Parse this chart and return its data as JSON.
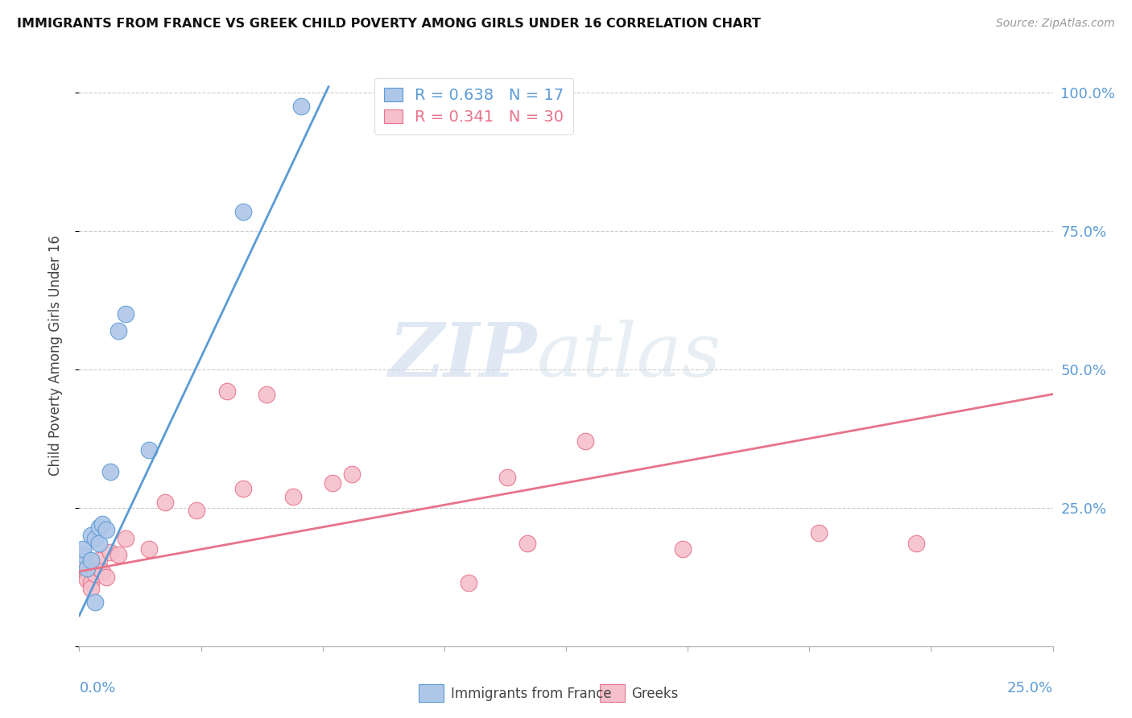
{
  "title": "IMMIGRANTS FROM FRANCE VS GREEK CHILD POVERTY AMONG GIRLS UNDER 16 CORRELATION CHART",
  "source": "Source: ZipAtlas.com",
  "ylabel": "Child Poverty Among Girls Under 16",
  "xlim": [
    0,
    0.25
  ],
  "ylim": [
    0,
    1.05
  ],
  "blue_R": 0.638,
  "blue_N": 17,
  "pink_R": 0.341,
  "pink_N": 30,
  "blue_color": "#aec6e8",
  "pink_color": "#f5c0cb",
  "blue_line_color": "#5b9bd5",
  "pink_line_color": "#e8738a",
  "label_color": "#5b9bd5",
  "blue_scatter_x": [
    0.001,
    0.001,
    0.002,
    0.003,
    0.003,
    0.004,
    0.004,
    0.005,
    0.005,
    0.006,
    0.007,
    0.008,
    0.01,
    0.012,
    0.018,
    0.042,
    0.057
  ],
  "blue_scatter_y": [
    0.165,
    0.175,
    0.14,
    0.2,
    0.155,
    0.195,
    0.08,
    0.215,
    0.185,
    0.22,
    0.21,
    0.315,
    0.57,
    0.6,
    0.355,
    0.785,
    0.975
  ],
  "pink_scatter_x": [
    0.001,
    0.001,
    0.002,
    0.002,
    0.003,
    0.003,
    0.004,
    0.005,
    0.005,
    0.006,
    0.007,
    0.008,
    0.01,
    0.012,
    0.018,
    0.022,
    0.03,
    0.038,
    0.042,
    0.048,
    0.055,
    0.065,
    0.07,
    0.1,
    0.11,
    0.115,
    0.13,
    0.155,
    0.19,
    0.215
  ],
  "pink_scatter_y": [
    0.135,
    0.145,
    0.13,
    0.12,
    0.115,
    0.105,
    0.13,
    0.14,
    0.155,
    0.135,
    0.125,
    0.17,
    0.165,
    0.195,
    0.175,
    0.26,
    0.245,
    0.46,
    0.285,
    0.455,
    0.27,
    0.295,
    0.31,
    0.115,
    0.305,
    0.185,
    0.37,
    0.175,
    0.205,
    0.185
  ],
  "watermark_zip": "ZIP",
  "watermark_atlas": "atlas",
  "blue_trendline_x": [
    0.0,
    0.064
  ],
  "blue_trendline_y": [
    0.055,
    1.01
  ],
  "pink_trendline_x": [
    0.0,
    0.25
  ],
  "pink_trendline_y": [
    0.135,
    0.455
  ],
  "yticks": [
    0.0,
    0.25,
    0.5,
    0.75,
    1.0
  ],
  "ytick_labels_right": [
    "",
    "25.0%",
    "50.0%",
    "75.0%",
    "100.0%"
  ],
  "xtick_label_left": "0.0%",
  "xtick_label_right": "25.0%",
  "bottom_legend_left_label": "Immigrants from France",
  "bottom_legend_right_label": "Greeks"
}
